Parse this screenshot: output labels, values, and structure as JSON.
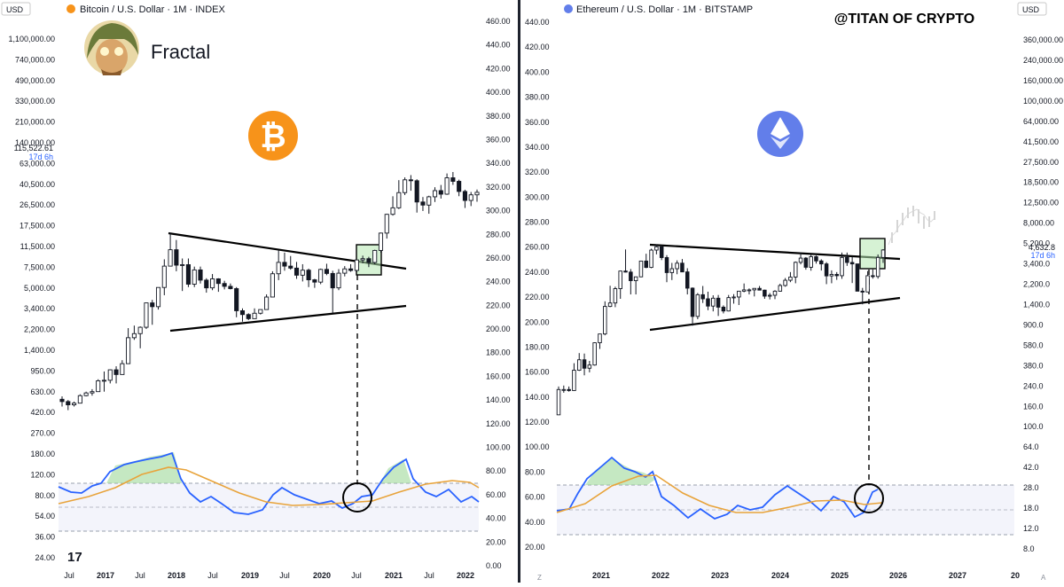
{
  "left_panel": {
    "currency": "USD",
    "title": "Bitcoin / U.S. Dollar · 1M · INDEX",
    "brand_text": "Fractal",
    "price_label": "115,522.61",
    "countdown": "17d 6h",
    "icon": "bitcoin-icon",
    "left_axis_ticks": [
      "1,100,000.00",
      "740,000.00",
      "490,000.00",
      "330,000.00",
      "210,000.00",
      "140,000.00",
      "63,000.00",
      "40,500.00",
      "26,500.00",
      "17,500.00",
      "11,500.00",
      "7,500.00",
      "5,000.00",
      "3,400.00",
      "2,200.00",
      "1,400.00",
      "950.00",
      "630.00",
      "420.00",
      "270.00",
      "180.00",
      "120.00",
      "80.00",
      "54.00",
      "36.00",
      "24.00"
    ],
    "right_axis_ticks": [
      "460.00",
      "440.00",
      "420.00",
      "400.00",
      "380.00",
      "360.00",
      "340.00",
      "320.00",
      "300.00",
      "280.00",
      "260.00",
      "240.00",
      "220.00",
      "200.00",
      "180.00",
      "160.00",
      "140.00",
      "120.00",
      "100.00",
      "80.00",
      "60.00",
      "40.00",
      "20.00",
      "0.00"
    ],
    "time_axis": [
      "Jul",
      "2017",
      "Jul",
      "2018",
      "Jul",
      "2019",
      "Jul",
      "2020",
      "Jul",
      "2021",
      "Jul",
      "2022"
    ],
    "colors": {
      "bitcoin": "#f7931a",
      "rsi": "#2962ff",
      "rsi_ma": "#e8a33a",
      "breakout_box": "#b5e8b0"
    }
  },
  "right_panel": {
    "title": "Ethereum / U.S. Dollar · 1M · BITSTAMP",
    "watermark": "@TITAN OF CRYPTO",
    "currency": "USD",
    "price_label": "4,632.8",
    "countdown": "17d 6h",
    "icon": "ethereum-icon",
    "left_axis_ticks": [
      "440.00",
      "420.00",
      "400.00",
      "380.00",
      "360.00",
      "340.00",
      "320.00",
      "300.00",
      "280.00",
      "260.00",
      "240.00",
      "220.00",
      "200.00",
      "180.00",
      "160.00",
      "140.00",
      "120.00",
      "100.00",
      "80.00",
      "60.00",
      "40.00",
      "20.00"
    ],
    "right_axis_ticks": [
      "360,000.00",
      "240,000.00",
      "160,000.00",
      "100,000.00",
      "64,000.00",
      "41,500.00",
      "27,500.00",
      "18,500.00",
      "12,500.00",
      "8,000.00",
      "5,200.0",
      "3,400.0",
      "2,200.0",
      "1,400.0",
      "900.0",
      "580.0",
      "380.0",
      "240.0",
      "160.0",
      "100.0",
      "64.0",
      "42.0",
      "28.0",
      "18.0",
      "12.0",
      "8.0"
    ],
    "time_axis": [
      "2021",
      "2022",
      "2023",
      "2024",
      "2025",
      "2026",
      "2027",
      "20"
    ],
    "colors": {
      "ethereum": "#627eea",
      "rsi": "#2962ff",
      "rsi_ma": "#e8a33a",
      "breakout_box": "#b5e8b0"
    }
  },
  "chart_data": [
    {
      "type": "candlestick",
      "title": "Bitcoin / U.S. Dollar · 1M · INDEX",
      "scale": "log",
      "ylim": [
        24,
        1100000
      ],
      "x_range": [
        "2016-06",
        "2022-03"
      ],
      "series": [
        {
          "values": [
            [
              650,
              690,
              560,
              620
            ],
            [
              620,
              640,
              520,
              580
            ],
            [
              580,
              620,
              560,
              600
            ],
            [
              600,
              720,
              600,
              700
            ],
            [
              700,
              760,
              690,
              740
            ],
            [
              740,
              800,
              700,
              760
            ],
            [
              760,
              980,
              760,
              950
            ],
            [
              950,
              1150,
              760,
              960
            ],
            [
              960,
              1200,
              900,
              1190
            ],
            [
              1190,
              1280,
              900,
              1080
            ],
            [
              1080,
              1450,
              1080,
              1350
            ],
            [
              1350,
              2800,
              1350,
              2300
            ],
            [
              2300,
              2950,
              2200,
              2500
            ],
            [
              2500,
              2900,
              1850,
              2850
            ],
            [
              2850,
              4700,
              2750,
              4700
            ],
            [
              4700,
              5000,
              3000,
              4350
            ],
            [
              4350,
              6400,
              4100,
              6450
            ],
            [
              6450,
              11500,
              5500,
              10000
            ],
            [
              10000,
              19800,
              10000,
              14000
            ],
            [
              14000,
              17100,
              9000,
              10200
            ],
            [
              10200,
              11700,
              6000,
              10300
            ],
            [
              10300,
              11700,
              6500,
              6900
            ],
            [
              6900,
              9900,
              6500,
              9250
            ],
            [
              9250,
              9900,
              7000,
              7500
            ],
            [
              7500,
              7800,
              5800,
              6400
            ],
            [
              6400,
              8500,
              6100,
              7700
            ],
            [
              7700,
              7800,
              5900,
              7000
            ],
            [
              7000,
              7400,
              6200,
              6600
            ],
            [
              6600,
              7000,
              6200,
              6300
            ],
            [
              6300,
              6500,
              3500,
              4000
            ],
            [
              4000,
              4200,
              3200,
              3700
            ],
            [
              3700,
              3800,
              3300,
              3400
            ],
            [
              3400,
              4200,
              3400,
              3800
            ],
            [
              3800,
              4100,
              3700,
              4100
            ],
            [
              4100,
              5600,
              4100,
              5300
            ],
            [
              5300,
              9000,
              5300,
              8550
            ],
            [
              8550,
              13800,
              7500,
              10800
            ],
            [
              10800,
              13200,
              9100,
              10000
            ],
            [
              10000,
              12300,
              9300,
              9600
            ],
            [
              9600,
              10900,
              7700,
              8300
            ],
            [
              8300,
              10400,
              7300,
              9200
            ],
            [
              9200,
              9500,
              6500,
              7550
            ],
            [
              7550,
              7700,
              6400,
              7200
            ],
            [
              7200,
              9500,
              6900,
              9350
            ],
            [
              9350,
              10500,
              8300,
              8600
            ],
            [
              8600,
              9100,
              3800,
              6400
            ],
            [
              6400,
              9400,
              6100,
              8650
            ],
            [
              8650,
              10000,
              8100,
              9450
            ],
            [
              9450,
              10400,
              8900,
              9150
            ],
            [
              9150,
              11400,
              8900,
              11350
            ],
            [
              11350,
              12400,
              10600,
              11650
            ],
            [
              11650,
              12100,
              9800,
              10780
            ],
            [
              10780,
              14000,
              10400,
              13800
            ],
            [
              13800,
              19900,
              13200,
              19700
            ],
            [
              19700,
              29300,
              17600,
              28950
            ],
            [
              28950,
              41950,
              28200,
              33100
            ],
            [
              33100,
              58400,
              32300,
              45200
            ],
            [
              45200,
              61800,
              43000,
              58800
            ],
            [
              58800,
              64800,
              47000,
              57700
            ],
            [
              57700,
              59500,
              30000,
              37300
            ],
            [
              37300,
              41300,
              31000,
              35000
            ],
            [
              35000,
              42400,
              29300,
              41500
            ],
            [
              41500,
              50500,
              37300,
              47100
            ],
            [
              47100,
              52900,
              40000,
              43800
            ],
            [
              43800,
              67000,
              43200,
              61300
            ],
            [
              61300,
              69000,
              53000,
              57000
            ],
            [
              57000,
              59000,
              42000,
              46300
            ],
            [
              46300,
              48000,
              33000,
              38500
            ],
            [
              38500,
              45800,
              34300,
              43200
            ],
            [
              43200,
              48200,
              37500,
              45500
            ]
          ]
        }
      ]
    },
    {
      "type": "candlestick",
      "title": "Ethereum / U.S. Dollar · 1M · BITSTAMP",
      "scale": "log",
      "ylim": [
        8,
        360000
      ],
      "x_range": [
        "2020-05",
        "2026-07"
      ],
      "series": [
        {
          "values": [
            [
              135,
              245,
              135,
              230
            ],
            [
              230,
              250,
              215,
              230
            ],
            [
              230,
              245,
              220,
              225
            ],
            [
              225,
              400,
              225,
              345
            ],
            [
              345,
              495,
              340,
              430
            ],
            [
              430,
              490,
              310,
              360
            ],
            [
              360,
              420,
              330,
              385
            ],
            [
              385,
              620,
              380,
              615
            ],
            [
              615,
              740,
              540,
              740
            ],
            [
              740,
              1470,
              720,
              1320
            ],
            [
              1320,
              2040,
              1300,
              1420
            ],
            [
              1420,
              2000,
              1300,
              1920
            ],
            [
              1920,
              2800,
              1550,
              2780
            ],
            [
              2780,
              4380,
              2700,
              2720
            ],
            [
              2720,
              2900,
              1700,
              2270
            ],
            [
              2270,
              2450,
              1700,
              2460
            ],
            [
              2460,
              3450,
              2440,
              3430
            ],
            [
              3430,
              4000,
              2950,
              3000
            ],
            [
              3000,
              4450,
              2950,
              4320
            ],
            [
              4320,
              4870,
              3950,
              4630
            ],
            [
              4630,
              4800,
              3500,
              3690
            ],
            [
              3690,
              3880,
              2200,
              2690
            ],
            [
              2690,
              3300,
              2300,
              2920
            ],
            [
              2920,
              3480,
              2600,
              3280
            ],
            [
              3280,
              3580,
              2780,
              2730
            ],
            [
              2730,
              2950,
              1700,
              1940
            ],
            [
              1940,
              1970,
              880,
              1070
            ],
            [
              1070,
              1750,
              1010,
              1690
            ],
            [
              1690,
              2030,
              1420,
              1550
            ],
            [
              1550,
              1800,
              1220,
              1330
            ],
            [
              1330,
              1670,
              1190,
              1570
            ],
            [
              1570,
              1680,
              1080,
              1300
            ],
            [
              1300,
              1350,
              1140,
              1200
            ],
            [
              1200,
              1680,
              1190,
              1590
            ],
            [
              1590,
              1710,
              1400,
              1610
            ],
            [
              1610,
              1820,
              1360,
              1820
            ],
            [
              1820,
              2140,
              1780,
              1870
            ],
            [
              1870,
              1930,
              1700,
              1870
            ],
            [
              1870,
              1930,
              1630,
              1930
            ],
            [
              1930,
              2030,
              1850,
              1860
            ],
            [
              1860,
              1880,
              1550,
              1640
            ],
            [
              1640,
              1750,
              1530,
              1670
            ],
            [
              1670,
              1860,
              1540,
              1820
            ],
            [
              1820,
              2130,
              1800,
              2050
            ],
            [
              2050,
              2400,
              2000,
              2290
            ],
            [
              2290,
              2720,
              2200,
              2450
            ],
            [
              2450,
              3400,
              2150,
              3340
            ],
            [
              3340,
              4100,
              3200,
              3650
            ],
            [
              3650,
              3730,
              2860,
              3010
            ],
            [
              3010,
              3950,
              2800,
              3760
            ],
            [
              3760,
              3850,
              3250,
              3440
            ],
            [
              3440,
              3560,
              2810,
              3230
            ],
            [
              3230,
              3350,
              2110,
              2510
            ],
            [
              2510,
              2820,
              2150,
              2590
            ],
            [
              2590,
              2720,
              2310,
              2520
            ],
            [
              2520,
              4100,
              2360,
              3700
            ],
            [
              3700,
              4100,
              3100,
              3330
            ],
            [
              3330,
              3750,
              2160,
              3230
            ],
            [
              3230,
              2750,
              1820,
              1820
            ],
            [
              1820,
              1950,
              1380,
              1790
            ],
            [
              1790,
              2780,
              1790,
              2520
            ],
            [
              2520,
              2880,
              2370,
              2480
            ],
            [
              2480,
              3940,
              2370,
              3700
            ],
            [
              3700,
              4400,
              3300,
              4330
            ]
          ]
        }
      ]
    }
  ]
}
